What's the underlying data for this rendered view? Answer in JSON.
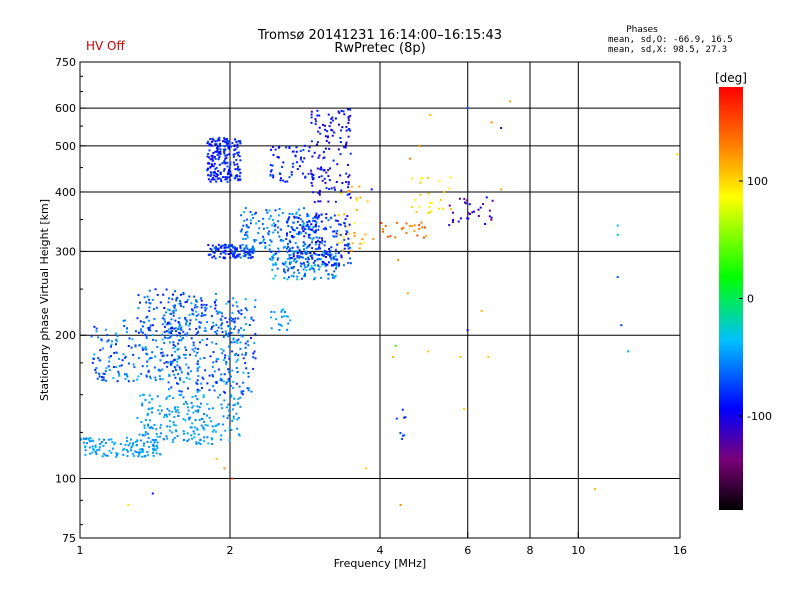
{
  "header": {
    "status": "HV Off",
    "status_color": "#cc0000",
    "title_line1": "Tromsø 20141231 16:14:00–16:15:43",
    "title_line2": "RwPretec (8p)"
  },
  "stats": {
    "heading": "Phases",
    "line1": "mean, sd,O: -66.9, 16.5",
    "line2": "mean, sd,X:  98.5, 27.3"
  },
  "colorbar": {
    "label": "[deg]",
    "min": -180,
    "max": 180,
    "ticks": [
      {
        "value": 100,
        "label": "100"
      },
      {
        "value": 0,
        "label": "0"
      },
      {
        "value": -100,
        "label": "-100"
      }
    ]
  },
  "chart_data": {
    "type": "scatter",
    "xlabel": "Frequency [MHz]",
    "ylabel": "Stationary phase Virtual Height [km]",
    "xscale": "log",
    "yscale": "log",
    "xlim": [
      1,
      16
    ],
    "ylim": [
      75,
      750
    ],
    "grid": true,
    "x_ticks": [
      {
        "value": 1,
        "label": "1",
        "grid": false
      },
      {
        "value": 2,
        "label": "2",
        "grid": true
      },
      {
        "value": 4,
        "label": "4",
        "grid": true
      },
      {
        "value": 6,
        "label": "6",
        "grid": true
      },
      {
        "value": 8,
        "label": "8",
        "grid": true
      },
      {
        "value": 10,
        "label": "10",
        "grid": true
      },
      {
        "value": 16,
        "label": "16",
        "grid": false
      }
    ],
    "y_ticks": [
      {
        "value": 75,
        "label": "75",
        "grid": false
      },
      {
        "value": 100,
        "label": "100",
        "grid": true
      },
      {
        "value": 200,
        "label": "200",
        "grid": true
      },
      {
        "value": 300,
        "label": "300",
        "grid": true
      },
      {
        "value": 400,
        "label": "400",
        "grid": true
      },
      {
        "value": 500,
        "label": "500",
        "grid": true
      },
      {
        "value": 600,
        "label": "600",
        "grid": true
      },
      {
        "value": 750,
        "label": "750",
        "grid": false
      }
    ],
    "clusters": [
      {
        "x": [
          1.0,
          1.45
        ],
        "y": [
          111,
          122
        ],
        "phase": [
          -80,
          -60
        ],
        "count": 120
      },
      {
        "x": [
          1.3,
          2.1
        ],
        "y": [
          118,
          150
        ],
        "phase": [
          -80,
          -60
        ],
        "count": 220
      },
      {
        "x": [
          1.05,
          1.6
        ],
        "y": [
          160,
          215
        ],
        "phase": [
          -110,
          -60
        ],
        "count": 200
      },
      {
        "x": [
          1.5,
          2.25
        ],
        "y": [
          150,
          240
        ],
        "phase": [
          -110,
          -60
        ],
        "count": 320
      },
      {
        "x": [
          1.3,
          1.9
        ],
        "y": [
          200,
          250
        ],
        "phase": [
          -120,
          -70
        ],
        "count": 100
      },
      {
        "x": [
          1.8,
          2.25
        ],
        "y": [
          290,
          310
        ],
        "phase": [
          -120,
          -80
        ],
        "count": 120
      },
      {
        "x": [
          1.8,
          2.1
        ],
        "y": [
          420,
          520
        ],
        "phase": [
          -120,
          -95
        ],
        "count": 200
      },
      {
        "x": [
          2.4,
          3.0
        ],
        "y": [
          420,
          500
        ],
        "phase": [
          -120,
          -95
        ],
        "count": 60
      },
      {
        "x": [
          2.1,
          3.0
        ],
        "y": [
          300,
          370
        ],
        "phase": [
          -100,
          -60
        ],
        "count": 150
      },
      {
        "x": [
          2.4,
          3.3
        ],
        "y": [
          262,
          300
        ],
        "phase": [
          -100,
          -50
        ],
        "count": 140
      },
      {
        "x": [
          2.6,
          3.5
        ],
        "y": [
          280,
          360
        ],
        "phase": [
          -120,
          -80
        ],
        "count": 200
      },
      {
        "x": [
          2.9,
          3.5
        ],
        "y": [
          380,
          600
        ],
        "phase": [
          -130,
          -100
        ],
        "count": 130
      },
      {
        "x": [
          3.3,
          3.9
        ],
        "y": [
          300,
          420
        ],
        "phase": [
          70,
          130
        ],
        "count": 30
      },
      {
        "x": [
          4.0,
          5.0
        ],
        "y": [
          320,
          345
        ],
        "phase": [
          120,
          160
        ],
        "count": 25
      },
      {
        "x": [
          4.5,
          5.6
        ],
        "y": [
          360,
          430
        ],
        "phase": [
          80,
          110
        ],
        "count": 25
      },
      {
        "x": [
          5.5,
          6.8
        ],
        "y": [
          340,
          390
        ],
        "phase": [
          -150,
          -110
        ],
        "count": 30
      },
      {
        "x": [
          2.4,
          2.65
        ],
        "y": [
          200,
          230
        ],
        "phase": [
          -80,
          -60
        ],
        "count": 20
      },
      {
        "x": [
          4.3,
          4.5
        ],
        "y": [
          120,
          140
        ],
        "phase": [
          -110,
          -90
        ],
        "count": 8
      }
    ],
    "points": [
      {
        "x": 1.4,
        "y": 93,
        "phase": -110
      },
      {
        "x": 1.25,
        "y": 88,
        "phase": 90
      },
      {
        "x": 2.02,
        "y": 100,
        "phase": 160
      },
      {
        "x": 1.95,
        "y": 105,
        "phase": 130
      },
      {
        "x": 1.88,
        "y": 110,
        "phase": 110
      },
      {
        "x": 3.75,
        "y": 105,
        "phase": 100
      },
      {
        "x": 4.4,
        "y": 88,
        "phase": 130
      },
      {
        "x": 4.25,
        "y": 180,
        "phase": 110
      },
      {
        "x": 4.3,
        "y": 190,
        "phase": 20
      },
      {
        "x": 4.35,
        "y": 288,
        "phase": 130
      },
      {
        "x": 4.55,
        "y": 245,
        "phase": 120
      },
      {
        "x": 5.0,
        "y": 185,
        "phase": 110
      },
      {
        "x": 5.8,
        "y": 180,
        "phase": 110
      },
      {
        "x": 5.9,
        "y": 140,
        "phase": 100
      },
      {
        "x": 6.0,
        "y": 205,
        "phase": -120
      },
      {
        "x": 6.4,
        "y": 225,
        "phase": 110
      },
      {
        "x": 6.6,
        "y": 180,
        "phase": 100
      },
      {
        "x": 5.05,
        "y": 580,
        "phase": 110
      },
      {
        "x": 6.0,
        "y": 600,
        "phase": -90
      },
      {
        "x": 6.7,
        "y": 560,
        "phase": 130
      },
      {
        "x": 7.0,
        "y": 545,
        "phase": -130
      },
      {
        "x": 7.3,
        "y": 620,
        "phase": 120
      },
      {
        "x": 7.0,
        "y": 405,
        "phase": 120
      },
      {
        "x": 3.85,
        "y": 405,
        "phase": -110
      },
      {
        "x": 4.6,
        "y": 470,
        "phase": 140
      },
      {
        "x": 4.8,
        "y": 500,
        "phase": 130
      },
      {
        "x": 10.8,
        "y": 95,
        "phase": 110
      },
      {
        "x": 12.0,
        "y": 340,
        "phase": -50
      },
      {
        "x": 12.0,
        "y": 325,
        "phase": -40
      },
      {
        "x": 12.2,
        "y": 210,
        "phase": -100
      },
      {
        "x": 12.0,
        "y": 265,
        "phase": -90
      },
      {
        "x": 12.6,
        "y": 185,
        "phase": -70
      },
      {
        "x": 15.8,
        "y": 480,
        "phase": 100
      }
    ]
  }
}
